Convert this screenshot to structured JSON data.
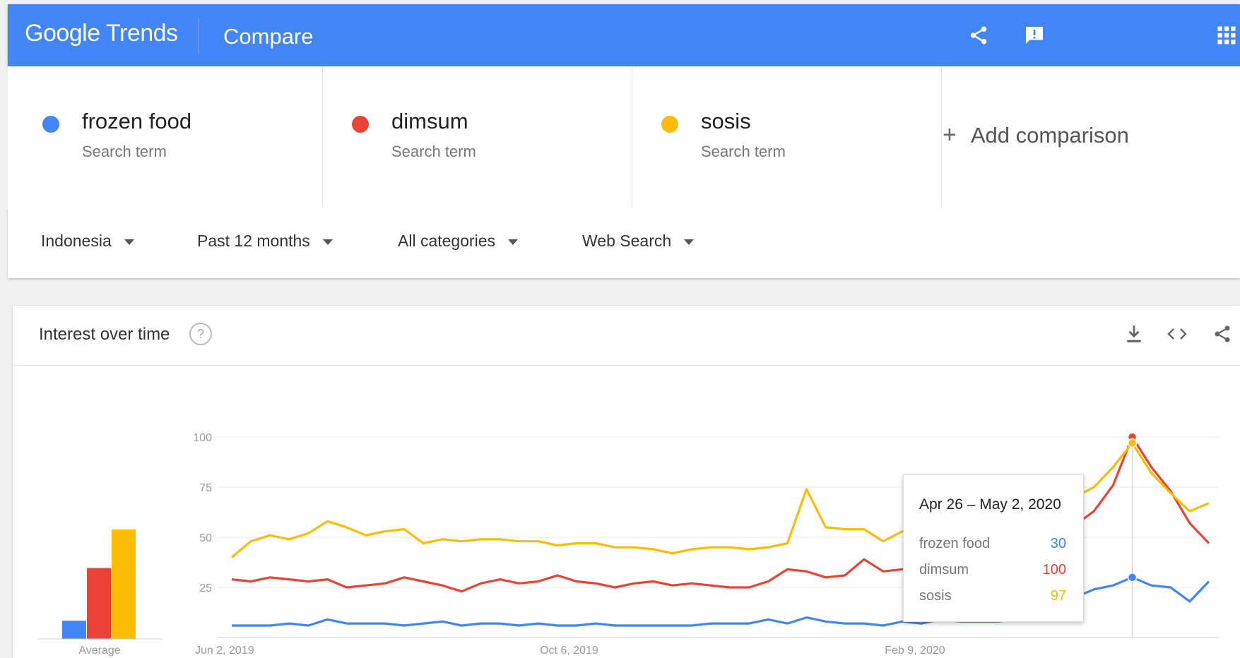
{
  "header": {
    "logo_google": "Google",
    "logo_trends": "Trends",
    "title": "Compare",
    "icons": [
      "share-icon",
      "feedback-icon",
      "apps-icon"
    ]
  },
  "terms": [
    {
      "name": "frozen food",
      "sub": "Search term",
      "color": "#4285f4"
    },
    {
      "name": "dimsum",
      "sub": "Search term",
      "color": "#ea4335"
    },
    {
      "name": "sosis",
      "sub": "Search term",
      "color": "#fbbc04"
    }
  ],
  "add_comparison": "Add comparison",
  "filters": {
    "region": "Indonesia",
    "time": "Past 12 months",
    "category": "All categories",
    "search_type": "Web Search"
  },
  "card": {
    "title": "Interest over time",
    "help": "?"
  },
  "tooltip": {
    "date": "Apr 26 – May 2, 2020",
    "rows": [
      {
        "label": "frozen food",
        "value": "30",
        "color": "#4285f4"
      },
      {
        "label": "dimsum",
        "value": "100",
        "color": "#ea4335"
      },
      {
        "label": "sosis",
        "value": "97",
        "color": "#fbbc04"
      }
    ]
  },
  "chart_data": {
    "type": "line",
    "average_label": "Average",
    "averages": [
      {
        "name": "frozen food",
        "value": 9
      },
      {
        "name": "dimsum",
        "value": 35
      },
      {
        "name": "sosis",
        "value": 54
      }
    ],
    "y_ticks": [
      "100",
      "75",
      "50",
      "25"
    ],
    "ylim": [
      0,
      100
    ],
    "x_tick_labels": [
      "Jun 2, 2019",
      "Oct 6, 2019",
      "Feb 9, 2020"
    ],
    "x_tick_index": [
      0,
      18,
      36
    ],
    "highlight_index": 47,
    "grid": true,
    "series": [
      {
        "name": "frozen food",
        "color": "#4285f4",
        "values": [
          6,
          6,
          6,
          7,
          6,
          9,
          7,
          7,
          7,
          6,
          7,
          8,
          6,
          7,
          7,
          6,
          7,
          6,
          6,
          7,
          6,
          6,
          6,
          6,
          6,
          7,
          7,
          7,
          9,
          7,
          10,
          8,
          7,
          7,
          6,
          8,
          7,
          9,
          8,
          8,
          8,
          9,
          11,
          15,
          20,
          24,
          26,
          30,
          26,
          25,
          18,
          28
        ]
      },
      {
        "name": "dimsum",
        "color": "#ea4335",
        "values": [
          29,
          28,
          30,
          29,
          28,
          29,
          25,
          26,
          27,
          30,
          28,
          26,
          23,
          27,
          29,
          27,
          28,
          31,
          28,
          27,
          25,
          27,
          28,
          26,
          27,
          26,
          25,
          25,
          28,
          34,
          33,
          30,
          31,
          39,
          33,
          34,
          34,
          33,
          30,
          29,
          30,
          27,
          32,
          40,
          56,
          63,
          76,
          100,
          85,
          73,
          57,
          47
        ]
      },
      {
        "name": "sosis",
        "color": "#fbbc04",
        "values": [
          40,
          48,
          51,
          49,
          52,
          58,
          55,
          51,
          53,
          54,
          47,
          49,
          48,
          49,
          49,
          48,
          48,
          46,
          47,
          47,
          45,
          45,
          44,
          42,
          44,
          45,
          45,
          44,
          45,
          47,
          74,
          55,
          54,
          54,
          48,
          53,
          53,
          55,
          55,
          56,
          57,
          60,
          62,
          65,
          70,
          75,
          85,
          97,
          82,
          72,
          63,
          67
        ]
      }
    ]
  }
}
